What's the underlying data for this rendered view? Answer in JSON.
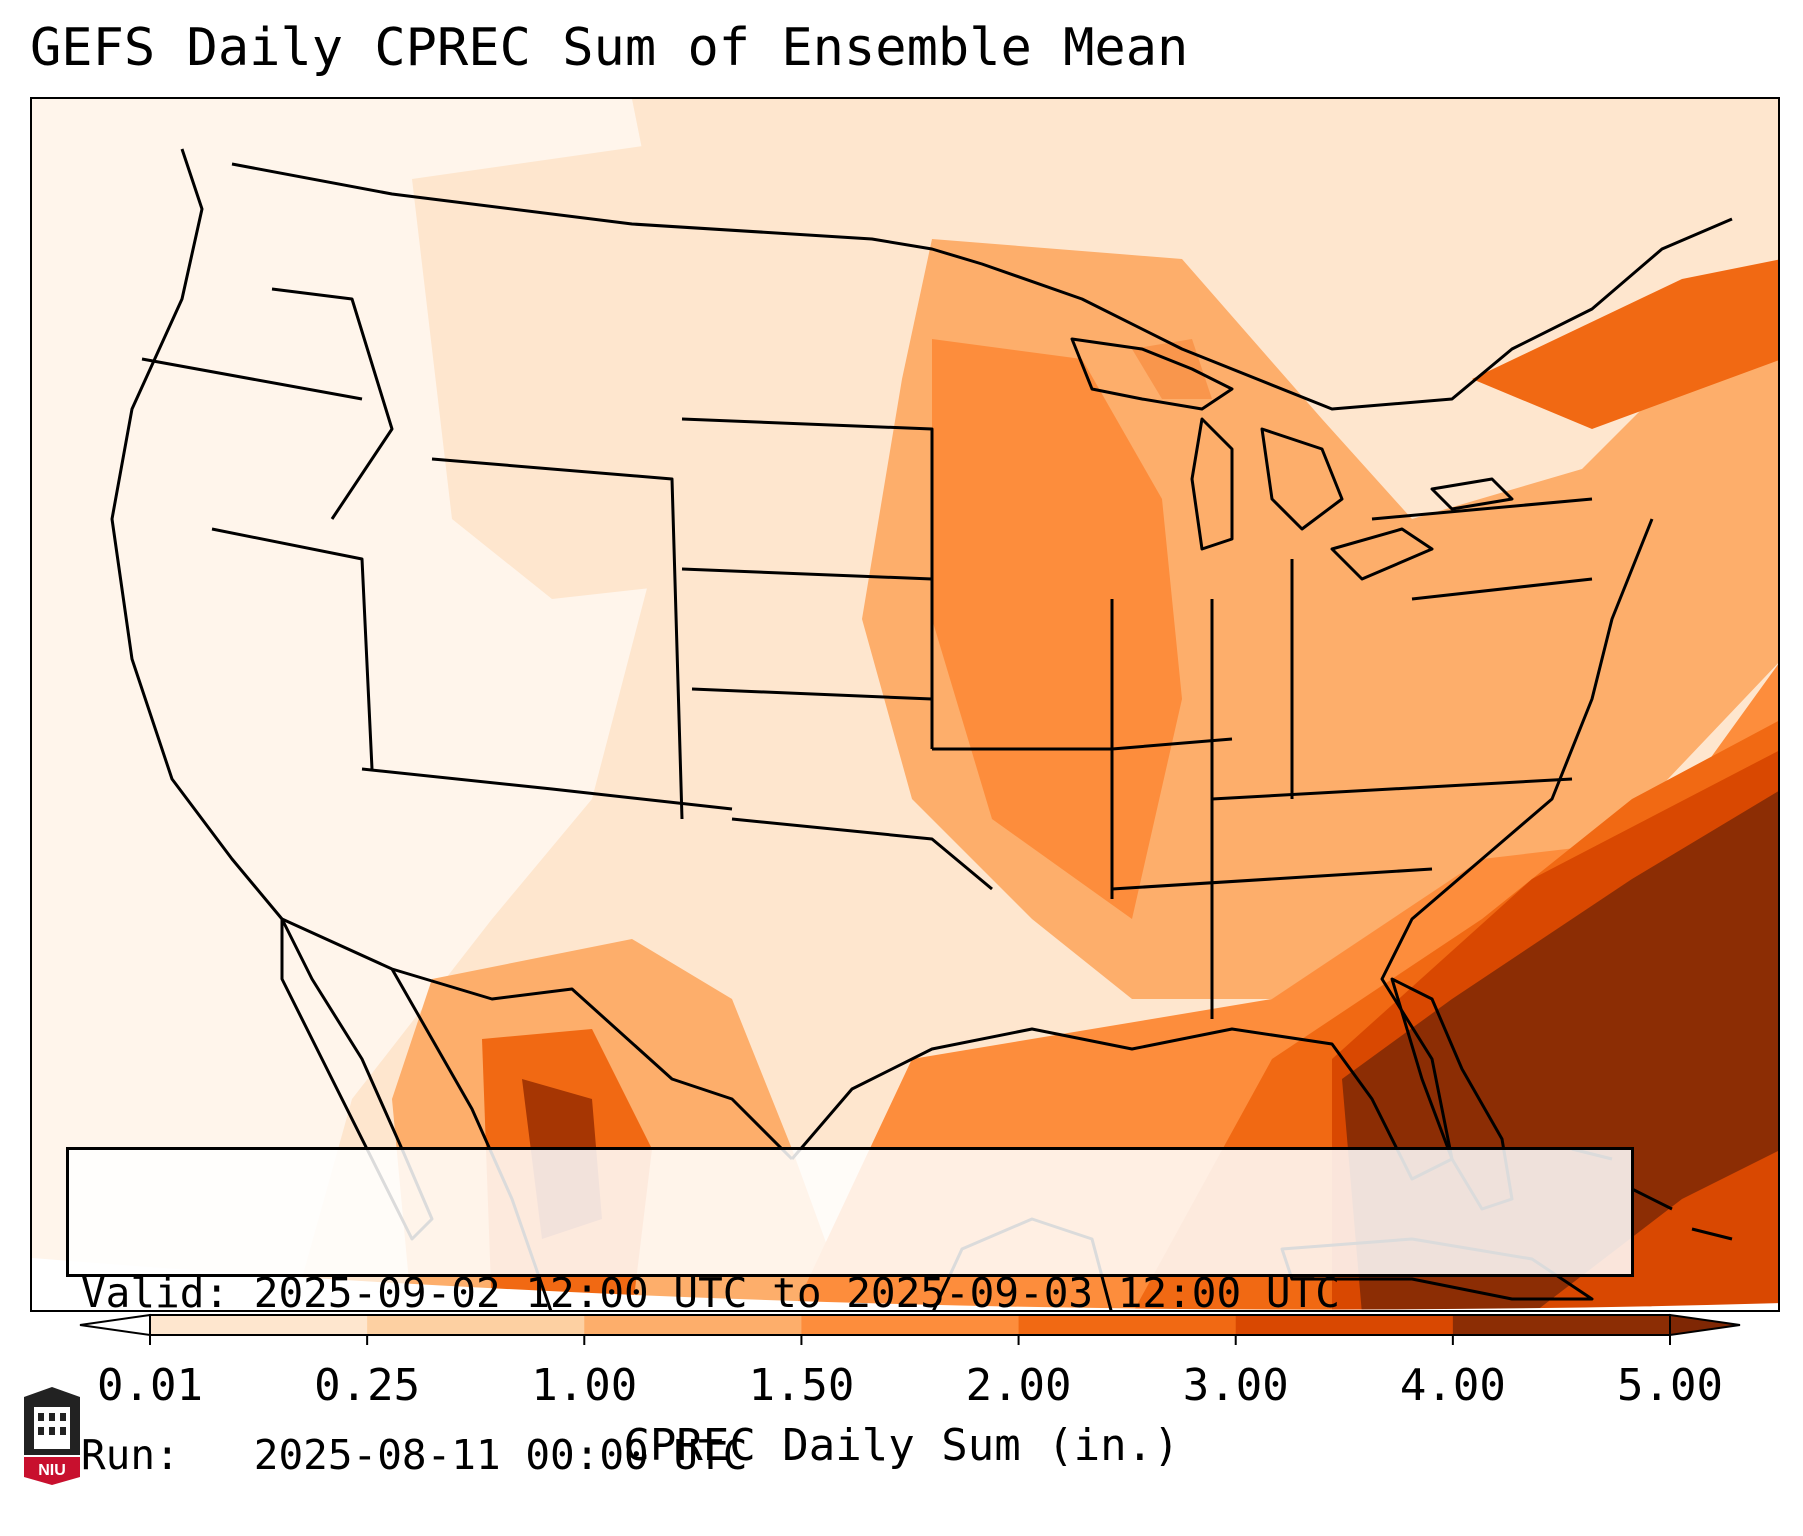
{
  "title": "GEFS Daily CPREC Sum of Ensemble Mean",
  "info": {
    "valid_label": "Valid:",
    "valid_value": "2025-09-02 12:00 UTC to 2025-09-03 12:00 UTC",
    "run_label": "Run:  ",
    "run_value": "2025-08-11 00:00 UTC"
  },
  "colorbar": {
    "label": "CPREC Daily Sum (in.)",
    "ticks": [
      "0.01",
      "0.25",
      "1.00",
      "1.50",
      "2.00",
      "3.00",
      "4.00",
      "5.00"
    ],
    "colors": [
      "#fff5eb",
      "#fee6ce",
      "#fdd0a2",
      "#fdae6b",
      "#fd8d3c",
      "#f16913",
      "#d94801",
      "#8c2d04"
    ],
    "under_color": "#ffffff",
    "over_color": "#7f2704"
  },
  "map": {
    "region": "Contiguous United States",
    "projection": "lambert-conformal",
    "ocean_precip_pattern": "heaviest over Southeast US coast, Florida and western Atlantic; moderate over central Plains and Gulf"
  },
  "logo": {
    "text": "NIU",
    "colors": {
      "red": "#c8102e",
      "dark": "#222222"
    }
  }
}
